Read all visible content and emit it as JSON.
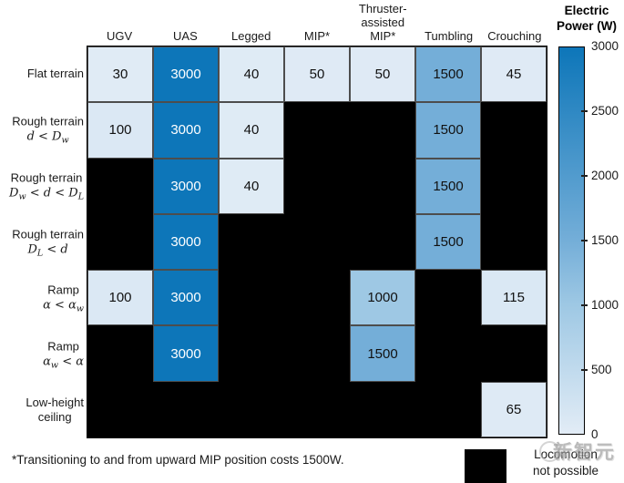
{
  "chart_data": {
    "type": "heatmap",
    "columns": [
      {
        "lines": [
          "UGV"
        ]
      },
      {
        "lines": [
          "UAS"
        ]
      },
      {
        "lines": [
          "Legged"
        ]
      },
      {
        "lines": [
          "MIP*"
        ]
      },
      {
        "lines": [
          "Thruster-",
          "assisted",
          "MIP*"
        ]
      },
      {
        "lines": [
          "Tumbling"
        ]
      },
      {
        "lines": [
          "Crouching"
        ]
      }
    ],
    "rows": [
      {
        "lines": [
          "Flat terrain"
        ],
        "math": ""
      },
      {
        "lines": [
          "Rough terrain"
        ],
        "math": "d < D_w"
      },
      {
        "lines": [
          "Rough terrain"
        ],
        "math": "D_w < d < D_L"
      },
      {
        "lines": [
          "Rough terrain"
        ],
        "math": "D_L < d"
      },
      {
        "lines": [
          "Ramp"
        ],
        "math": "α < α_w"
      },
      {
        "lines": [
          "Ramp"
        ],
        "math": "α_w < α"
      },
      {
        "lines": [
          "Low-height",
          "ceiling"
        ],
        "math": ""
      }
    ],
    "values": [
      [
        30,
        3000,
        40,
        50,
        50,
        1500,
        45
      ],
      [
        100,
        3000,
        40,
        null,
        null,
        1500,
        null
      ],
      [
        null,
        3000,
        40,
        null,
        null,
        1500,
        null
      ],
      [
        null,
        3000,
        null,
        null,
        null,
        1500,
        null
      ],
      [
        100,
        3000,
        null,
        null,
        1000,
        null,
        115
      ],
      [
        null,
        3000,
        null,
        null,
        1500,
        null,
        null
      ],
      [
        null,
        null,
        null,
        null,
        null,
        null,
        65
      ]
    ],
    "value_range": [
      0,
      3000
    ],
    "null_meaning": "Locomotion not possible",
    "colorbar": {
      "title_lines": [
        "Electric",
        "Power (W)"
      ],
      "ticks": [
        0,
        500,
        1000,
        1500,
        2000,
        2500,
        3000
      ]
    },
    "colors": {
      "cmap_stops": [
        {
          "v": 0,
          "c": "#e2ecf6"
        },
        {
          "v": 1000,
          "c": "#9ec8e4"
        },
        {
          "v": 1500,
          "c": "#74aed8"
        },
        {
          "v": 3000,
          "c": "#0d76b9"
        }
      ],
      "not_possible": "#000000",
      "cell_text_dark": "#111111",
      "cell_text_light": "#ffffff",
      "white_text_threshold": 2000
    }
  },
  "footnote": "*Transitioning to and from upward MIP position costs 1500W.",
  "legend": {
    "label_lines": [
      "Locomotion",
      "not possible"
    ]
  },
  "watermark": "新智元"
}
